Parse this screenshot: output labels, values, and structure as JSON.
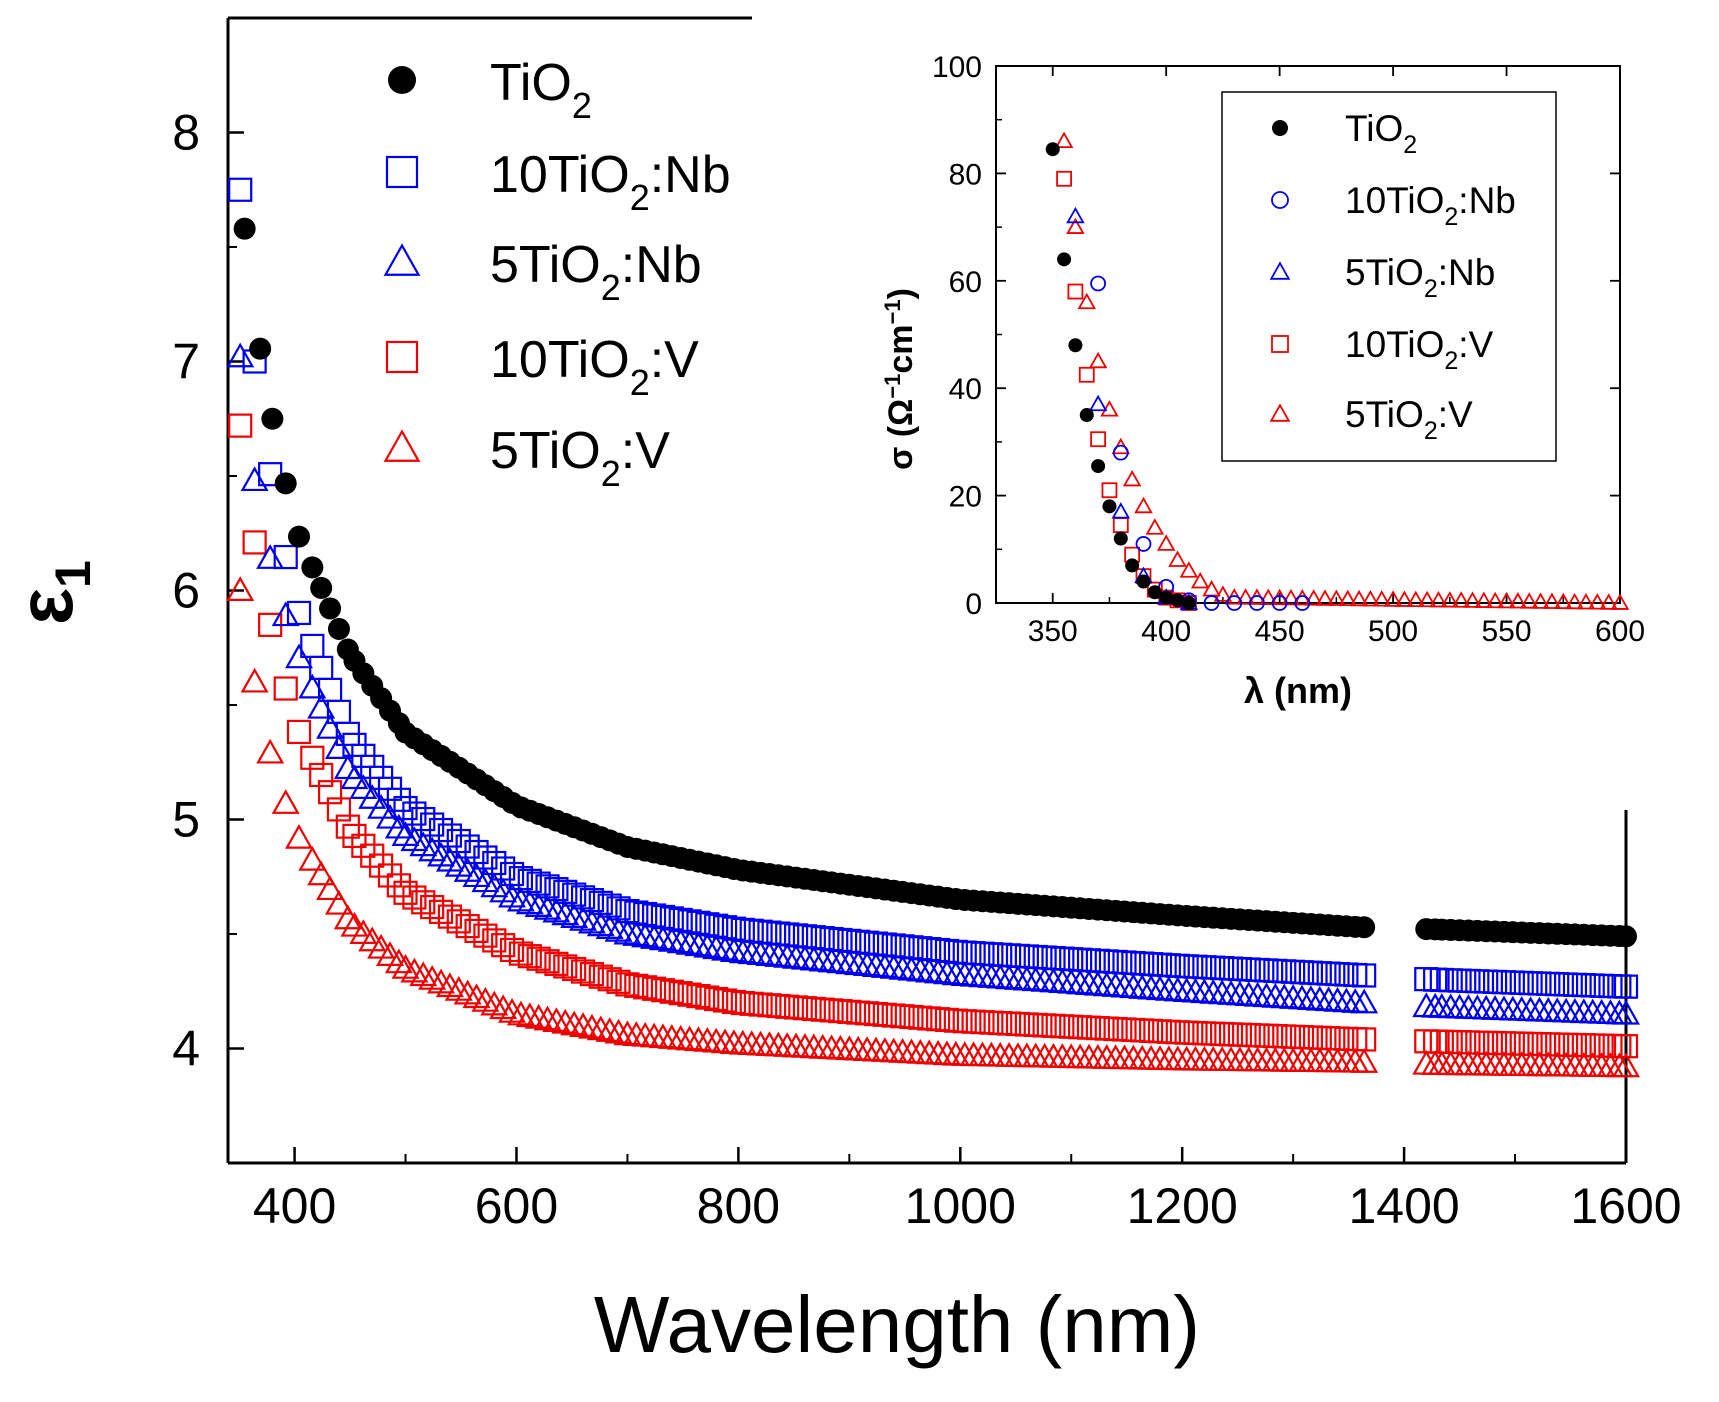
{
  "chart_data": [
    {
      "id": "main",
      "type": "scatter",
      "xlabel": "Wavelength (nm)",
      "ylabel": "ε",
      "ylabel_sub": "1",
      "xlim": [
        340,
        1600
      ],
      "ylim": [
        3.5,
        8.5
      ],
      "xticks": [
        400,
        600,
        800,
        1000,
        1200,
        1400,
        1600
      ],
      "yticks": [
        4,
        5,
        6,
        7,
        8
      ],
      "axis_break": [
        1365,
        1420
      ],
      "legend_position": "top-left",
      "series": [
        {
          "key": "tio2",
          "name": "TiO",
          "sub": "2",
          "suffix": "",
          "marker": "filled-circle",
          "color": "#000000",
          "x": [
            355,
            360,
            365,
            370,
            380,
            400,
            450,
            500,
            600,
            700,
            800,
            1000,
            1200,
            1360,
            1430,
            1600
          ],
          "y": [
            7.58,
            7.37,
            7.2,
            7.02,
            6.75,
            6.28,
            5.72,
            5.38,
            5.06,
            4.88,
            4.78,
            4.65,
            4.58,
            4.53,
            4.52,
            4.49
          ]
        },
        {
          "key": "nb10",
          "name": "10TiO",
          "sub": "2",
          "suffix": ":Nb",
          "marker": "open-square",
          "color": "#0000ee",
          "x": [
            351,
            355,
            360,
            365,
            370,
            380,
            400,
            450,
            500,
            600,
            700,
            800,
            1000,
            1200,
            1360,
            1430,
            1600
          ],
          "y": [
            7.75,
            7.4,
            7.2,
            6.95,
            6.78,
            6.44,
            5.95,
            5.35,
            5.05,
            4.75,
            4.6,
            4.52,
            4.42,
            4.36,
            4.32,
            4.3,
            4.27
          ]
        },
        {
          "key": "nb5",
          "name": "5TiO",
          "sub": "2",
          "suffix": ":Nb",
          "marker": "open-triangle",
          "color": "#0000ee",
          "x": [
            351,
            355,
            360,
            370,
            380,
            400,
            450,
            500,
            600,
            700,
            800,
            1000,
            1200,
            1360,
            1430,
            1600
          ],
          "y": [
            7.02,
            6.8,
            6.6,
            6.3,
            6.1,
            5.75,
            5.2,
            4.93,
            4.65,
            4.5,
            4.42,
            4.32,
            4.25,
            4.2,
            4.18,
            4.15
          ]
        },
        {
          "key": "v10",
          "name": "10TiO",
          "sub": "2",
          "suffix": ":V",
          "marker": "open-square",
          "color": "#ee0000",
          "x": [
            351,
            355,
            360,
            365,
            370,
            380,
            400,
            450,
            500,
            600,
            700,
            800,
            1000,
            1200,
            1360,
            1430,
            1600
          ],
          "y": [
            6.72,
            6.5,
            6.33,
            6.18,
            6.05,
            5.8,
            5.42,
            4.95,
            4.68,
            4.42,
            4.28,
            4.2,
            4.12,
            4.07,
            4.04,
            4.03,
            4.01
          ]
        },
        {
          "key": "v5",
          "name": "5TiO",
          "sub": "2",
          "suffix": ":V",
          "marker": "open-triangle",
          "color": "#ee0000",
          "x": [
            351,
            355,
            360,
            370,
            380,
            400,
            450,
            500,
            600,
            700,
            800,
            1000,
            1200,
            1360,
            1430,
            1600
          ],
          "y": [
            6.0,
            5.85,
            5.7,
            5.45,
            5.25,
            4.95,
            4.55,
            4.35,
            4.15,
            4.06,
            4.02,
            3.97,
            3.95,
            3.94,
            3.93,
            3.92
          ]
        }
      ]
    },
    {
      "id": "inset",
      "type": "scatter",
      "xlabel": "λ (nm)",
      "ylabel": "σ (Ω",
      "ylabel_sup1": "−1",
      "ylabel_mid": "cm",
      "ylabel_sup2": "−1",
      "ylabel_end": ")",
      "xlim": [
        325,
        600
      ],
      "ylim": [
        0,
        100
      ],
      "xticks": [
        350,
        400,
        450,
        500,
        550,
        600
      ],
      "yticks": [
        0,
        20,
        40,
        60,
        80,
        100
      ],
      "legend_position": "top-right",
      "series": [
        {
          "key": "tio2",
          "name": "TiO",
          "sub": "2",
          "suffix": "",
          "marker": "filled-circle",
          "color": "#000000",
          "x": [
            350,
            355,
            360,
            365,
            370,
            375,
            380,
            385,
            390,
            395,
            400,
            405,
            410
          ],
          "y": [
            84.5,
            64,
            48,
            35,
            25.5,
            18,
            12,
            7,
            4,
            2,
            1,
            0.5,
            0
          ]
        },
        {
          "key": "nb10",
          "name": "10TiO",
          "sub": "2",
          "suffix": ":Nb",
          "marker": "open-circle",
          "color": "#0000ee",
          "x": [
            370,
            380,
            390,
            400,
            410,
            420,
            430,
            440,
            450,
            460
          ],
          "y": [
            59.5,
            28,
            11,
            3,
            0.5,
            0,
            0,
            0,
            0,
            0
          ]
        },
        {
          "key": "nb5",
          "name": "5TiO",
          "sub": "2",
          "suffix": ":Nb",
          "marker": "open-triangle",
          "color": "#0000ee",
          "x": [
            360,
            370,
            380,
            390,
            400,
            410
          ],
          "y": [
            72,
            37,
            17,
            5,
            1,
            0
          ]
        },
        {
          "key": "v10",
          "name": "10TiO",
          "sub": "2",
          "suffix": ":V",
          "marker": "open-square",
          "color": "#ee0000",
          "x": [
            355,
            360,
            365,
            370,
            375,
            380,
            385,
            390,
            395,
            400,
            405,
            410
          ],
          "y": [
            79,
            58,
            42.5,
            30.5,
            21,
            14.5,
            9,
            5,
            2.5,
            1,
            0.5,
            0
          ]
        },
        {
          "key": "v5",
          "name": "5TiO",
          "sub": "2",
          "suffix": ":V",
          "marker": "open-triangle",
          "color": "#ee0000",
          "x": [
            355,
            360,
            365,
            370,
            375,
            380,
            385,
            390,
            395,
            400,
            405,
            410,
            415,
            420,
            425,
            430,
            600
          ],
          "y": [
            86,
            70,
            56,
            45,
            36,
            29,
            23,
            18,
            14,
            11,
            8,
            6,
            4,
            2.5,
            1.5,
            1,
            0
          ]
        }
      ]
    }
  ]
}
